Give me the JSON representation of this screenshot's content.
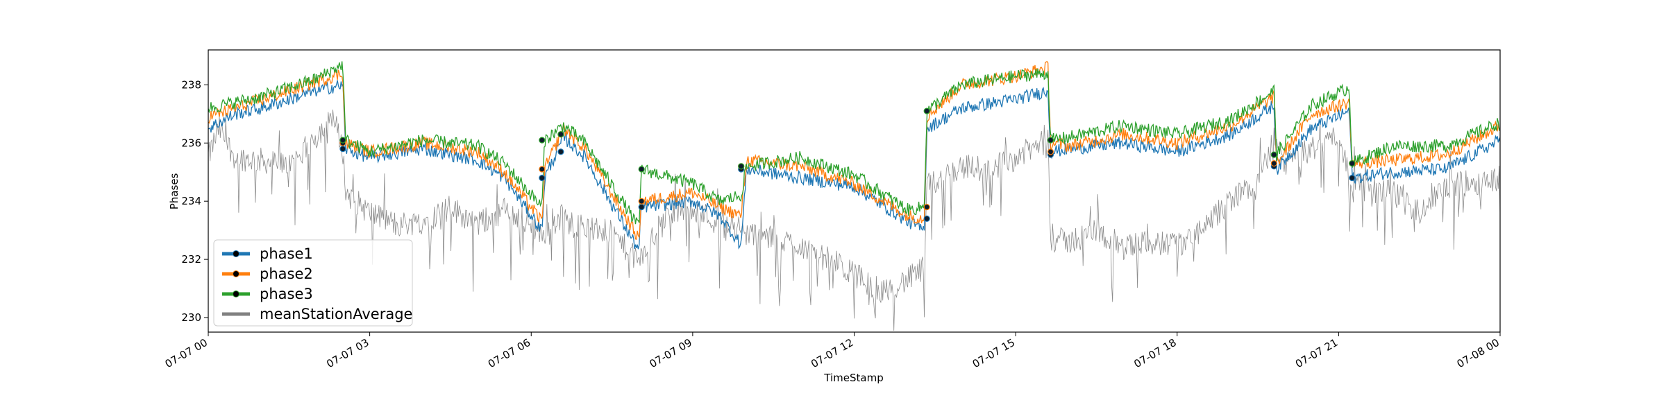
{
  "chart_data": {
    "type": "line",
    "xlabel": "TimeStamp",
    "ylabel": "Phases",
    "x_tick_labels": [
      "07-07 00",
      "07-07 03",
      "07-07 06",
      "07-07 09",
      "07-07 12",
      "07-07 15",
      "07-07 18",
      "07-07 21",
      "07-08 00"
    ],
    "y_tick_labels": [
      "230",
      "232",
      "234",
      "236",
      "238"
    ],
    "xlim": [
      "07-07 00",
      "07-08 00"
    ],
    "ylim": [
      229.5,
      239.2
    ],
    "legend_position": "lower-left",
    "colors": {
      "phase1": "#1f77b4",
      "phase2": "#ff7f0e",
      "phase3": "#2ca02c",
      "meanStationAverage": "#808080"
    },
    "series": [
      {
        "name": "phase1",
        "hours": [
          0,
          0.5,
          1,
          1.5,
          2,
          2.5,
          2.55,
          3,
          4,
          5,
          5.5,
          6.2,
          6.25,
          6.6,
          7,
          8,
          8.05,
          9,
          9.5,
          9.9,
          10,
          11,
          12,
          13,
          13.3,
          13.35,
          14,
          15,
          15.6,
          15.65,
          16,
          17,
          18,
          19,
          19.8,
          19.85,
          20.5,
          21.2,
          21.25,
          22,
          23,
          24
        ],
        "values": [
          236.5,
          237,
          237.2,
          237.5,
          237.8,
          238,
          235.8,
          235.5,
          235.8,
          235.4,
          234.8,
          233,
          234.8,
          236.2,
          235.5,
          232.3,
          233.8,
          234,
          233.5,
          232.5,
          235.1,
          234.8,
          234.5,
          233.3,
          233,
          236.5,
          237.2,
          237.5,
          237.8,
          235.7,
          235.8,
          236,
          235.7,
          236.3,
          237.3,
          235.1,
          236.5,
          237.1,
          234.8,
          235,
          235.1,
          236.1
        ]
      },
      {
        "name": "phase2",
        "hours": [
          0,
          0.5,
          1,
          1.5,
          2,
          2.5,
          2.55,
          3,
          4,
          5,
          5.5,
          6.2,
          6.25,
          6.6,
          7,
          8,
          8.05,
          9,
          9.5,
          9.9,
          10,
          11,
          12,
          13,
          13.3,
          13.35,
          14,
          15,
          15.6,
          15.65,
          16,
          17,
          18,
          19,
          19.8,
          19.85,
          20.5,
          21.2,
          21.25,
          22,
          23,
          24
        ],
        "values": [
          236.9,
          237.2,
          237.5,
          237.8,
          238.1,
          238.4,
          236,
          235.7,
          236,
          235.7,
          235,
          233.3,
          235.1,
          236.5,
          235.8,
          232.7,
          234,
          234.3,
          233.8,
          233.5,
          235.4,
          235.2,
          234.6,
          233.5,
          233.4,
          236.9,
          238,
          238.3,
          238.6,
          236,
          235.9,
          236.3,
          236,
          236.6,
          237.6,
          235.3,
          237,
          237.4,
          235.3,
          235.4,
          235.6,
          236.6
        ]
      },
      {
        "name": "phase3",
        "hours": [
          0,
          0.5,
          1,
          1.5,
          2,
          2.5,
          2.55,
          3,
          4,
          5,
          5.5,
          6.2,
          6.25,
          6.6,
          7,
          8,
          8.05,
          9,
          9.5,
          9.9,
          10,
          11,
          12,
          13,
          13.3,
          13.35,
          14,
          15,
          15.6,
          15.65,
          16,
          17,
          18,
          19,
          19.8,
          19.85,
          20.5,
          21.2,
          21.25,
          22,
          23,
          24
        ],
        "values": [
          237.2,
          237.4,
          237.6,
          237.9,
          238.2,
          238.7,
          236.1,
          235.7,
          236.1,
          235.9,
          235.3,
          233.8,
          236.1,
          236.6,
          236,
          233.1,
          235.1,
          234.6,
          234,
          234.2,
          235.2,
          235.5,
          234.9,
          233.7,
          233.8,
          237.1,
          238,
          238.3,
          238.4,
          236.1,
          236.2,
          236.6,
          236.3,
          236.8,
          237.8,
          235.6,
          237.3,
          237.9,
          235.3,
          235.9,
          235.9,
          236.7
        ]
      },
      {
        "name": "meanStationAverage",
        "hours": [
          0,
          0.2,
          0.5,
          1,
          1.5,
          2,
          2.3,
          2.5,
          2.55,
          3,
          3.5,
          4,
          4.5,
          5,
          5.5,
          6,
          6.2,
          6.5,
          7,
          7.5,
          8,
          8.5,
          9,
          9.5,
          10,
          11,
          12,
          12.5,
          13,
          13.3,
          13.35,
          14,
          14.5,
          15,
          15.6,
          15.65,
          16,
          16.5,
          17,
          17.5,
          18,
          18.5,
          19,
          19.5,
          19.8,
          20,
          20.5,
          21,
          21.2,
          21.5,
          22,
          22.5,
          23,
          24
        ],
        "values": [
          235.5,
          236.5,
          235.5,
          235.4,
          235.2,
          236.2,
          237,
          235.8,
          234.3,
          233.6,
          233.2,
          233.3,
          233.8,
          233.2,
          233.7,
          233.2,
          232.8,
          233.4,
          233.1,
          232.9,
          231.9,
          233.5,
          233.8,
          233.2,
          232.9,
          232.5,
          231.5,
          230.9,
          231.3,
          231.7,
          234.5,
          235.2,
          235.1,
          235.5,
          236.1,
          232.7,
          232.6,
          233,
          232.4,
          232.6,
          232.5,
          233,
          234.1,
          234.6,
          236.1,
          235.3,
          235.8,
          236.3,
          234.8,
          234.4,
          234.3,
          233.6,
          234.5,
          234.8
        ]
      }
    ],
    "event_markers": {
      "hours": [
        2.5,
        6.2,
        6.55,
        8.05,
        9.9,
        13.35,
        15.65,
        19.8,
        21.25
      ],
      "phase1": [
        235.8,
        234.8,
        235.7,
        233.8,
        235.1,
        233.4,
        235.6,
        235.2,
        234.8
      ],
      "phase2": [
        236.0,
        235.1,
        236.3,
        234.0,
        235.2,
        233.8,
        235.7,
        235.3,
        235.3
      ],
      "phase3": [
        236.1,
        236.1,
        236.3,
        235.1,
        235.2,
        237.1,
        236.1,
        235.6,
        235.3
      ]
    }
  }
}
